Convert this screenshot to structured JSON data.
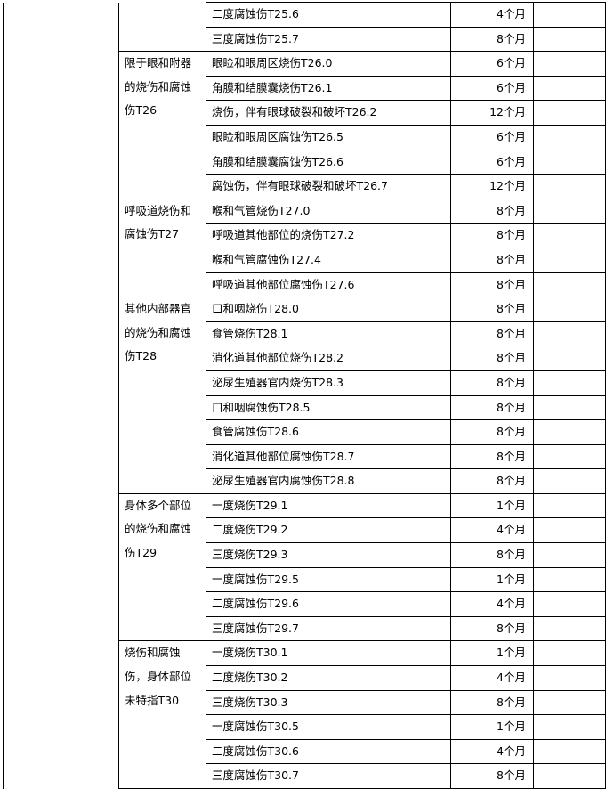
{
  "groups": [
    {
      "category": "",
      "items": [
        {
          "name": "二度腐蚀伤T25.6",
          "duration": "4个月"
        },
        {
          "name": "三度腐蚀伤T25.7",
          "duration": "8个月"
        }
      ]
    },
    {
      "category": "限于眼和附器的烧伤和腐蚀伤T26",
      "items": [
        {
          "name": "眼睑和眼周区烧伤T26.0",
          "duration": "6个月"
        },
        {
          "name": "角膜和结膜囊烧伤T26.1",
          "duration": "6个月"
        },
        {
          "name": "烧伤，伴有眼球破裂和破坏T26.2",
          "duration": "12个月"
        },
        {
          "name": "眼睑和眼周区腐蚀伤T26.5",
          "duration": "6个月"
        },
        {
          "name": "角膜和结膜囊腐蚀伤T26.6",
          "duration": "6个月"
        },
        {
          "name": "腐蚀伤，伴有眼球破裂和破坏T26.7",
          "duration": "12个月"
        }
      ]
    },
    {
      "category": "呼吸道烧伤和腐蚀伤T27",
      "items": [
        {
          "name": "喉和气管烧伤T27.0",
          "duration": "8个月"
        },
        {
          "name": "呼吸道其他部位的烧伤T27.2",
          "duration": "8个月"
        },
        {
          "name": "喉和气管腐蚀伤T27.4",
          "duration": "8个月"
        },
        {
          "name": "呼吸道其他部位腐蚀伤T27.6",
          "duration": "8个月"
        }
      ]
    },
    {
      "category": "其他内部器官的烧伤和腐蚀伤T28",
      "items": [
        {
          "name": "口和咽烧伤T28.0",
          "duration": "8个月"
        },
        {
          "name": "食管烧伤T28.1",
          "duration": "8个月"
        },
        {
          "name": "消化道其他部位烧伤T28.2",
          "duration": "8个月"
        },
        {
          "name": "泌尿生殖器官内烧伤T28.3",
          "duration": "8个月"
        },
        {
          "name": "口和咽腐蚀伤T28.5",
          "duration": "8个月"
        },
        {
          "name": "食管腐蚀伤T28.6",
          "duration": "8个月"
        },
        {
          "name": "消化道其他部位腐蚀伤T28.7",
          "duration": "8个月"
        },
        {
          "name": "泌尿生殖器官内腐蚀伤T28.8",
          "duration": "8个月"
        }
      ]
    },
    {
      "category": "身体多个部位的烧伤和腐蚀伤T29",
      "items": [
        {
          "name": "一度烧伤T29.1",
          "duration": "1个月"
        },
        {
          "name": "二度烧伤T29.2",
          "duration": "4个月"
        },
        {
          "name": "三度烧伤T29.3",
          "duration": "8个月"
        },
        {
          "name": "一度腐蚀伤T29.5",
          "duration": "1个月"
        },
        {
          "name": "二度腐蚀伤T29.6",
          "duration": "4个月"
        },
        {
          "name": "三度腐蚀伤T29.7",
          "duration": "8个月"
        }
      ]
    },
    {
      "category": "烧伤和腐蚀伤，身体部位未特指T30",
      "items": [
        {
          "name": "一度烧伤T30.1",
          "duration": "1个月"
        },
        {
          "name": "二度烧伤T30.2",
          "duration": "4个月"
        },
        {
          "name": "三度烧伤T30.3",
          "duration": "8个月"
        },
        {
          "name": "一度腐蚀伤T30.5",
          "duration": "1个月"
        },
        {
          "name": "二度腐蚀伤T30.6",
          "duration": "4个月"
        },
        {
          "name": "三度腐蚀伤T30.7",
          "duration": "8个月"
        }
      ]
    }
  ]
}
